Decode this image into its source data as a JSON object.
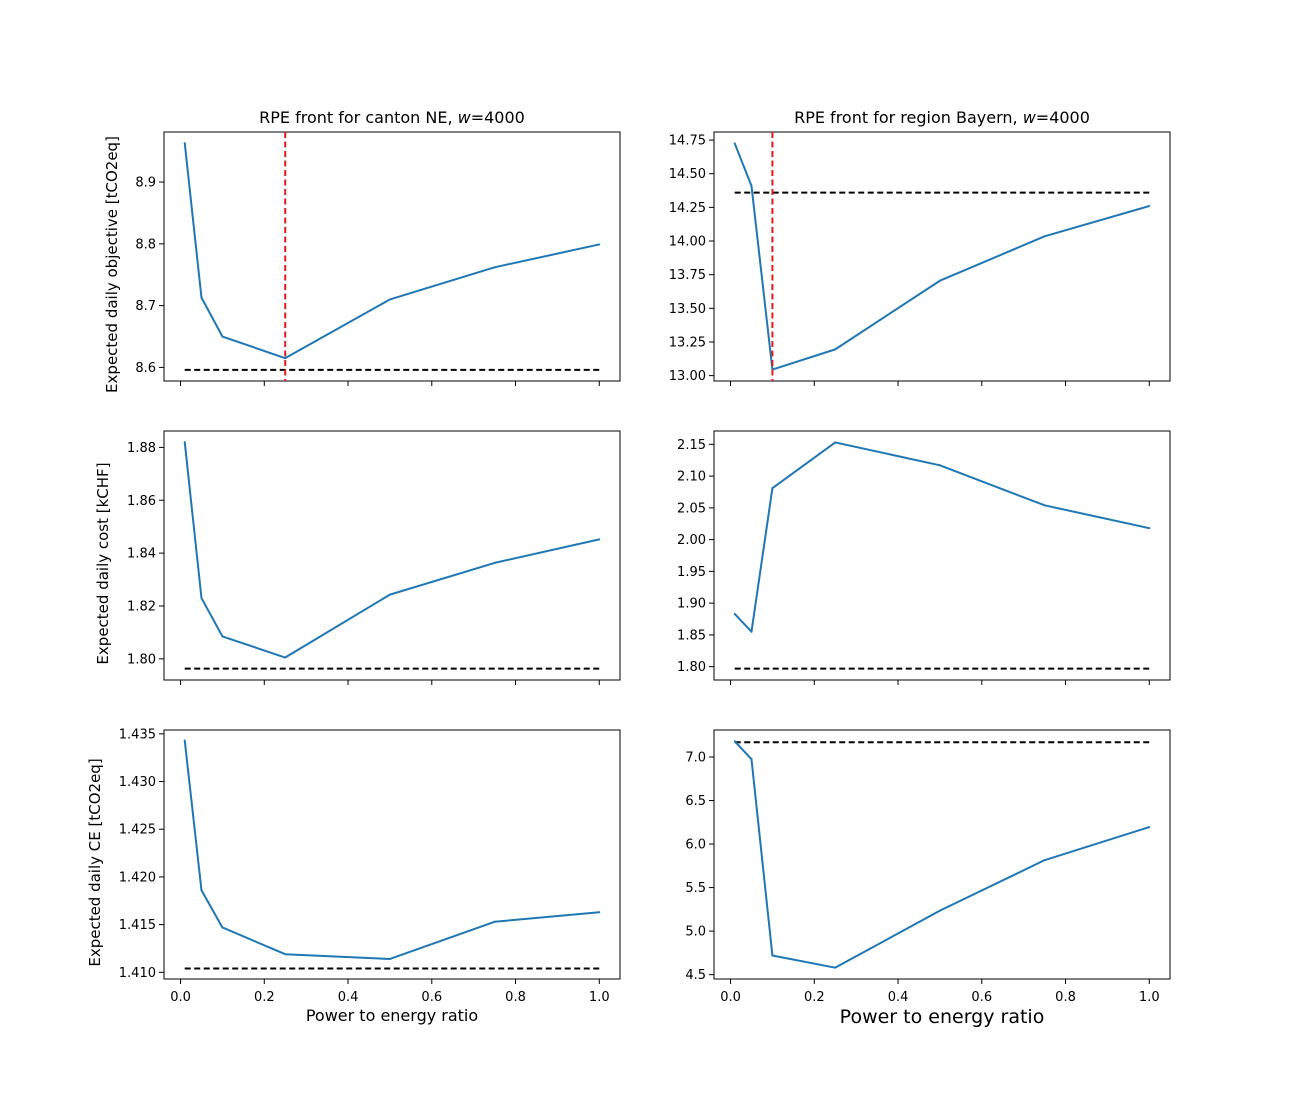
{
  "figure": {
    "series_color": "#1f77b4",
    "reference_color": "#000000",
    "marker_color": "#e41a1c"
  },
  "chart_data": [
    {
      "id": "ne-objective",
      "type": "line",
      "title": "RPE front for canton NE, w=4000",
      "title_parts": {
        "prefix": "RPE front for canton NE, ",
        "var": "w",
        "suffix": "=4000"
      },
      "xlabel": "",
      "ylabel": "Expected daily objective [tCO2eq]",
      "x": [
        0.01,
        0.05,
        0.1,
        0.25,
        0.5,
        0.75,
        1.0
      ],
      "values": [
        8.963,
        8.713,
        8.65,
        8.615,
        8.71,
        8.762,
        8.799
      ],
      "reference": 8.596,
      "vline": 0.25,
      "xlim": [
        -0.0395,
        1.0495
      ],
      "ylim": [
        8.578,
        8.981
      ],
      "xticks": [
        0.0,
        0.2,
        0.4,
        0.6,
        0.8,
        1.0
      ],
      "xtick_labels": [
        "0.0",
        "0.2",
        "0.4",
        "0.6",
        "0.8",
        "1.0"
      ],
      "show_xtick_labels": false,
      "yticks": [
        8.6,
        8.7,
        8.8,
        8.9
      ],
      "ytick_labels": [
        "8.6",
        "8.7",
        "8.8",
        "8.9"
      ]
    },
    {
      "id": "bayern-objective",
      "type": "line",
      "title": "RPE front for region Bayern, w=4000",
      "title_parts": {
        "prefix": "RPE front for region Bayern, ",
        "var": "w",
        "suffix": "=4000"
      },
      "xlabel": "",
      "ylabel": "",
      "x": [
        0.01,
        0.05,
        0.1,
        0.25,
        0.5,
        0.75,
        1.0
      ],
      "values": [
        14.725,
        14.41,
        13.045,
        13.195,
        13.705,
        14.035,
        14.26
      ],
      "reference": 14.36,
      "vline": 0.1,
      "xlim": [
        -0.0395,
        1.0495
      ],
      "ylim": [
        12.96,
        14.81
      ],
      "xticks": [
        0.0,
        0.2,
        0.4,
        0.6,
        0.8,
        1.0
      ],
      "xtick_labels": [
        "0.0",
        "0.2",
        "0.4",
        "0.6",
        "0.8",
        "1.0"
      ],
      "show_xtick_labels": false,
      "yticks": [
        13.0,
        13.25,
        13.5,
        13.75,
        14.0,
        14.25,
        14.5,
        14.75
      ],
      "ytick_labels": [
        "13.00",
        "13.25",
        "13.50",
        "13.75",
        "14.00",
        "14.25",
        "14.50",
        "14.75"
      ]
    },
    {
      "id": "ne-cost",
      "type": "line",
      "title": "",
      "xlabel": "",
      "ylabel": "Expected daily cost [kCHF]",
      "x": [
        0.01,
        0.05,
        0.1,
        0.25,
        0.5,
        0.75,
        1.0
      ],
      "values": [
        1.882,
        1.823,
        1.8085,
        1.8005,
        1.8243,
        1.8363,
        1.8452
      ],
      "reference": 1.7963,
      "xlim": [
        -0.0395,
        1.0495
      ],
      "ylim": [
        1.792,
        1.8862
      ],
      "xticks": [
        0.0,
        0.2,
        0.4,
        0.6,
        0.8,
        1.0
      ],
      "xtick_labels": [
        "0.0",
        "0.2",
        "0.4",
        "0.6",
        "0.8",
        "1.0"
      ],
      "show_xtick_labels": false,
      "yticks": [
        1.8,
        1.82,
        1.84,
        1.86,
        1.88
      ],
      "ytick_labels": [
        "1.80",
        "1.82",
        "1.84",
        "1.86",
        "1.88"
      ]
    },
    {
      "id": "bayern-cost",
      "type": "line",
      "title": "",
      "xlabel": "",
      "ylabel": "",
      "x": [
        0.01,
        0.05,
        0.1,
        0.25,
        0.5,
        0.75,
        1.0
      ],
      "values": [
        1.883,
        1.855,
        2.081,
        2.153,
        2.117,
        2.054,
        2.018
      ],
      "reference": 1.797,
      "xlim": [
        -0.0395,
        1.0495
      ],
      "ylim": [
        1.779,
        2.171
      ],
      "xticks": [
        0.0,
        0.2,
        0.4,
        0.6,
        0.8,
        1.0
      ],
      "xtick_labels": [
        "0.0",
        "0.2",
        "0.4",
        "0.6",
        "0.8",
        "1.0"
      ],
      "show_xtick_labels": false,
      "yticks": [
        1.8,
        1.85,
        1.9,
        1.95,
        2.0,
        2.05,
        2.1,
        2.15
      ],
      "ytick_labels": [
        "1.80",
        "1.85",
        "1.90",
        "1.95",
        "2.00",
        "2.05",
        "2.10",
        "2.15"
      ]
    },
    {
      "id": "ne-ce",
      "type": "line",
      "title": "",
      "xlabel": "Power to energy ratio",
      "ylabel": "Expected daily CE [tCO2eq]",
      "x": [
        0.01,
        0.05,
        0.1,
        0.25,
        0.5,
        0.75,
        1.0
      ],
      "values": [
        1.4343,
        1.4186,
        1.4147,
        1.4119,
        1.4114,
        1.4153,
        1.4163
      ],
      "reference": 1.4104,
      "xlim": [
        -0.0395,
        1.0495
      ],
      "ylim": [
        1.4093,
        1.4354
      ],
      "xticks": [
        0.0,
        0.2,
        0.4,
        0.6,
        0.8,
        1.0
      ],
      "xtick_labels": [
        "0.0",
        "0.2",
        "0.4",
        "0.6",
        "0.8",
        "1.0"
      ],
      "show_xtick_labels": true,
      "yticks": [
        1.41,
        1.415,
        1.42,
        1.425,
        1.43,
        1.435
      ],
      "ytick_labels": [
        "1.410",
        "1.415",
        "1.420",
        "1.425",
        "1.430",
        "1.435"
      ]
    },
    {
      "id": "bayern-ce",
      "type": "line",
      "title": "",
      "xlabel": "Power to energy ratio",
      "ylabel": "",
      "x": [
        0.01,
        0.05,
        0.1,
        0.25,
        0.5,
        0.75,
        1.0
      ],
      "values": [
        7.18,
        6.975,
        4.72,
        4.58,
        5.235,
        5.815,
        6.195
      ],
      "reference": 7.17,
      "xlim": [
        -0.0395,
        1.0495
      ],
      "ylim": [
        4.45,
        7.31
      ],
      "xticks": [
        0.0,
        0.2,
        0.4,
        0.6,
        0.8,
        1.0
      ],
      "xtick_labels": [
        "0.0",
        "0.2",
        "0.4",
        "0.6",
        "0.8",
        "1.0"
      ],
      "show_xtick_labels": true,
      "yticks": [
        4.5,
        5.0,
        5.5,
        6.0,
        6.5,
        7.0
      ],
      "ytick_labels": [
        "4.5",
        "5.0",
        "5.5",
        "6.0",
        "6.5",
        "7.0"
      ]
    }
  ]
}
